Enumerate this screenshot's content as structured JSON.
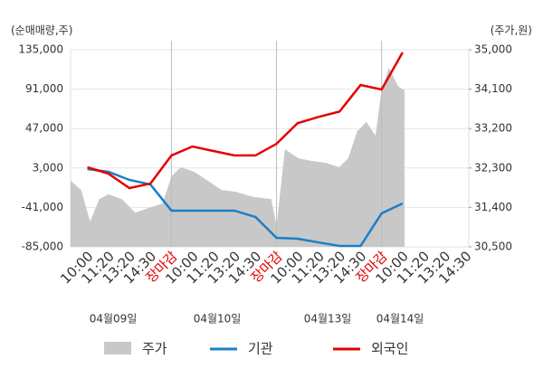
{
  "chart_data": {
    "type": "line",
    "y_axis_label": "(순매매량,주)",
    "y2_axis_label": "(주가,원)",
    "categories": [
      "10:00",
      "11:20",
      "13:20",
      "14:30",
      "장마감",
      "10:00",
      "11:20",
      "13:20",
      "14:30",
      "장마감",
      "10:00",
      "11:20",
      "13:20",
      "14:30",
      "장마감",
      "10:00",
      "11:20",
      "13:20",
      "14:30"
    ],
    "xlim": [
      -0.8,
      18.15
    ],
    "separators": [
      4,
      9,
      14
    ],
    "separator_label_color": "#e60000",
    "dates": [
      "04월09일",
      "04월10일",
      "04월13일",
      "04월14일"
    ],
    "ylim": [
      -85000,
      135000
    ],
    "yticks": [
      {
        "value": 135000,
        "label": "135,000"
      },
      {
        "value": 91000,
        "label": "91,000"
      },
      {
        "value": 47000,
        "label": "47,000"
      },
      {
        "value": 3000,
        "label": "3,000"
      },
      {
        "value": -41000,
        "label": "-41,000"
      },
      {
        "value": -85000,
        "label": "-85,000"
      }
    ],
    "y2lim": [
      30500,
      35000
    ],
    "y2ticks": [
      {
        "value": 35000,
        "label": "35,000"
      },
      {
        "value": 34100,
        "label": "34,100"
      },
      {
        "value": 33200,
        "label": "33,200"
      },
      {
        "value": 32300,
        "label": "32,300"
      },
      {
        "value": 31400,
        "label": "31,400"
      },
      {
        "value": 30500,
        "label": "30,500"
      }
    ],
    "grid": true,
    "area": {
      "name": "주가",
      "color": "#c8c8c8",
      "axis": "y2",
      "x": [
        -0.8,
        -0.3,
        0.13,
        0.56,
        1.0,
        1.64,
        2.28,
        2.93,
        3.58,
        4.0,
        4.44,
        5.09,
        5.73,
        6.38,
        7.03,
        7.89,
        8.75,
        9.0,
        9.4,
        10.04,
        10.69,
        11.34,
        11.98,
        12.41,
        12.84,
        13.28,
        13.71,
        14.0,
        14.35,
        14.78,
        15.09
      ],
      "values": [
        32010,
        31800,
        31080,
        31590,
        31700,
        31590,
        31280,
        31390,
        31490,
        32110,
        32320,
        32210,
        32010,
        31800,
        31760,
        31640,
        31590,
        30980,
        32730,
        32520,
        32460,
        32420,
        32320,
        32520,
        33140,
        33350,
        33040,
        34070,
        34590,
        34170,
        34070
      ]
    },
    "series": [
      {
        "name": "기관",
        "color": "#1a7fc8",
        "values": [
          1800,
          -1200,
          -10300,
          -15400,
          -44600,
          -44600,
          -44600,
          -44600,
          -51700,
          -74900,
          -75900,
          -80000,
          -84000,
          -84000,
          -47600,
          -36600,
          null,
          null,
          null
        ]
      },
      {
        "name": "외국인",
        "color": "#e60000",
        "values": [
          3800,
          -3300,
          -19400,
          -14400,
          17000,
          27000,
          22000,
          17000,
          17000,
          30000,
          53000,
          60000,
          66000,
          95600,
          90600,
          132000,
          null,
          null,
          null
        ]
      }
    ]
  }
}
